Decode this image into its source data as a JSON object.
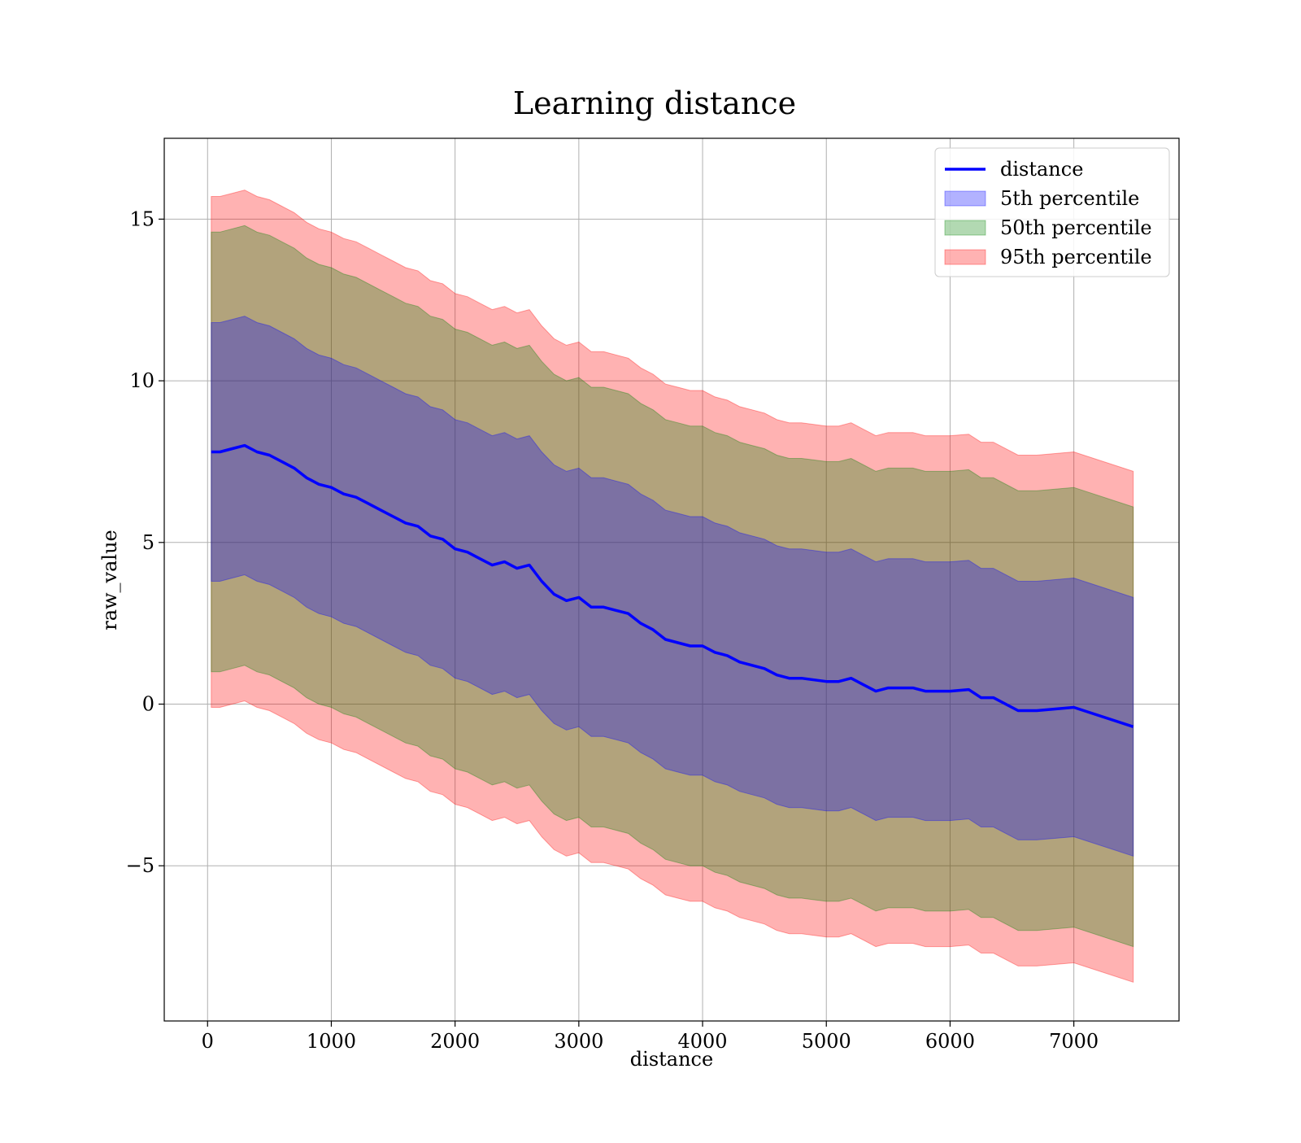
{
  "chart_data": {
    "type": "area",
    "title": "Learning distance",
    "xlabel": "distance",
    "ylabel": "raw_value",
    "xlim": [
      -350,
      7850
    ],
    "ylim": [
      -9.8,
      17.5
    ],
    "x_ticks": [
      0,
      1000,
      2000,
      3000,
      4000,
      5000,
      6000,
      7000
    ],
    "x_tick_labels": [
      "0",
      "1000",
      "2000",
      "3000",
      "4000",
      "5000",
      "6000",
      "7000"
    ],
    "y_ticks": [
      -5,
      0,
      5,
      10,
      15
    ],
    "y_tick_labels": [
      "−5",
      "0",
      "5",
      "10",
      "15"
    ],
    "grid": true,
    "legend_position": "top-right",
    "line": {
      "name": "distance",
      "color": "#0000ff",
      "x": [
        30,
        100,
        200,
        300,
        400,
        500,
        600,
        700,
        800,
        900,
        1000,
        1100,
        1200,
        1300,
        1400,
        1500,
        1600,
        1700,
        1800,
        1900,
        2000,
        2100,
        2200,
        2300,
        2400,
        2500,
        2600,
        2700,
        2800,
        2900,
        3000,
        3100,
        3200,
        3300,
        3400,
        3500,
        3600,
        3700,
        3800,
        3900,
        4000,
        4100,
        4200,
        4300,
        4400,
        4500,
        4600,
        4700,
        4800,
        4900,
        5000,
        5100,
        5200,
        5300,
        5400,
        5500,
        5600,
        5700,
        5800,
        5900,
        6000,
        6150,
        6250,
        6350,
        6550,
        6700,
        7000,
        7480
      ],
      "y": [
        7.8,
        7.8,
        7.9,
        8.0,
        7.8,
        7.7,
        7.5,
        7.3,
        7.0,
        6.8,
        6.7,
        6.5,
        6.4,
        6.2,
        6.0,
        5.8,
        5.6,
        5.5,
        5.2,
        5.1,
        4.8,
        4.7,
        4.5,
        4.3,
        4.4,
        4.2,
        4.3,
        3.8,
        3.4,
        3.2,
        3.3,
        3.0,
        3.0,
        2.9,
        2.8,
        2.5,
        2.3,
        2.0,
        1.9,
        1.8,
        1.8,
        1.6,
        1.5,
        1.3,
        1.2,
        1.1,
        0.9,
        0.8,
        0.8,
        0.75,
        0.7,
        0.7,
        0.8,
        0.6,
        0.4,
        0.5,
        0.5,
        0.5,
        0.4,
        0.4,
        0.4,
        0.45,
        0.2,
        0.2,
        -0.2,
        -0.2,
        -0.1,
        -0.7
      ]
    },
    "bands": [
      {
        "name": "5th percentile",
        "color": "#0000ff",
        "opacity": 0.3,
        "half_width": 4.0
      },
      {
        "name": "50th percentile",
        "color": "#008000",
        "opacity": 0.3,
        "half_width": 6.8
      },
      {
        "name": "95th percentile",
        "color": "#ff0000",
        "opacity": 0.3,
        "half_width": 7.9
      }
    ],
    "legend": [
      {
        "label": "distance",
        "kind": "line",
        "color": "#0000ff"
      },
      {
        "label": "5th percentile",
        "kind": "patch",
        "color": "#0000ff"
      },
      {
        "label": "50th percentile",
        "kind": "patch",
        "color": "#008000"
      },
      {
        "label": "95th percentile",
        "kind": "patch",
        "color": "#ff0000"
      }
    ]
  }
}
